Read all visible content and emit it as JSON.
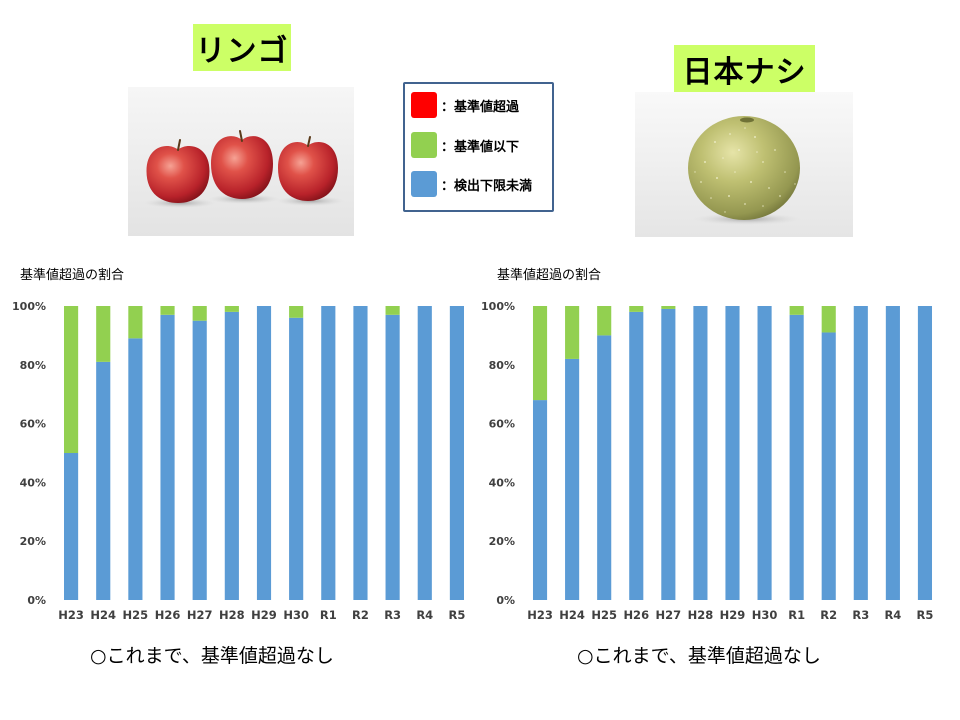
{
  "title_box_color": "#CCFF66",
  "apple": {
    "title": "リンゴ",
    "photo": "apple-photo",
    "note": "○これまで、基準値超過なし"
  },
  "pear": {
    "title": "日本ナシ",
    "photo": "pear-photo",
    "note": "○これまで、基準値超過なし"
  },
  "legend": {
    "separator": "：",
    "items": [
      {
        "label": "基準値超過",
        "color": "#FF0000",
        "icon": "red-square-icon"
      },
      {
        "label": "基準値以下",
        "color": "#92D050",
        "icon": "green-square-icon"
      },
      {
        "label": "検出下限未満",
        "color": "#5B9BD5",
        "icon": "blue-square-icon"
      }
    ]
  },
  "chart_data": [
    {
      "type": "bar",
      "stacked": true,
      "title": "基準値超過の割合",
      "categories": [
        "H23",
        "H24",
        "H25",
        "H26",
        "H27",
        "H28",
        "H29",
        "H30",
        "R1",
        "R2",
        "R3",
        "R4",
        "R5"
      ],
      "ylim": [
        0,
        100
      ],
      "yticks": [
        0,
        20,
        40,
        60,
        80,
        100
      ],
      "ytick_labels": [
        "0%",
        "20%",
        "40%",
        "60%",
        "80%",
        "100%"
      ],
      "grid": false,
      "legend": "top-center",
      "series": [
        {
          "name": "検出下限未満",
          "color": "#5B9BD5",
          "values": [
            50,
            81,
            89,
            97,
            95,
            98,
            100,
            96,
            100,
            100,
            97,
            100,
            100
          ]
        },
        {
          "name": "基準値以下",
          "color": "#92D050",
          "values": [
            50,
            19,
            11,
            3,
            5,
            2,
            0,
            4,
            0,
            0,
            3,
            0,
            0
          ]
        },
        {
          "name": "基準値超過",
          "color": "#FF0000",
          "values": [
            0,
            0,
            0,
            0,
            0,
            0,
            0,
            0,
            0,
            0,
            0,
            0,
            0
          ]
        }
      ]
    },
    {
      "type": "bar",
      "stacked": true,
      "title": "基準値超過の割合",
      "categories": [
        "H23",
        "H24",
        "H25",
        "H26",
        "H27",
        "H28",
        "H29",
        "H30",
        "R1",
        "R2",
        "R3",
        "R4",
        "R5"
      ],
      "ylim": [
        0,
        100
      ],
      "yticks": [
        0,
        20,
        40,
        60,
        80,
        100
      ],
      "ytick_labels": [
        "0%",
        "20%",
        "40%",
        "60%",
        "80%",
        "100%"
      ],
      "grid": false,
      "legend": "top-center",
      "series": [
        {
          "name": "検出下限未満",
          "color": "#5B9BD5",
          "values": [
            68,
            82,
            90,
            98,
            99,
            100,
            100,
            100,
            97,
            91,
            100,
            100,
            100
          ]
        },
        {
          "name": "基準値以下",
          "color": "#92D050",
          "values": [
            32,
            18,
            10,
            2,
            1,
            0,
            0,
            0,
            3,
            9,
            0,
            0,
            0
          ]
        },
        {
          "name": "基準値超過",
          "color": "#FF0000",
          "values": [
            0,
            0,
            0,
            0,
            0,
            0,
            0,
            0,
            0,
            0,
            0,
            0,
            0
          ]
        }
      ]
    }
  ]
}
